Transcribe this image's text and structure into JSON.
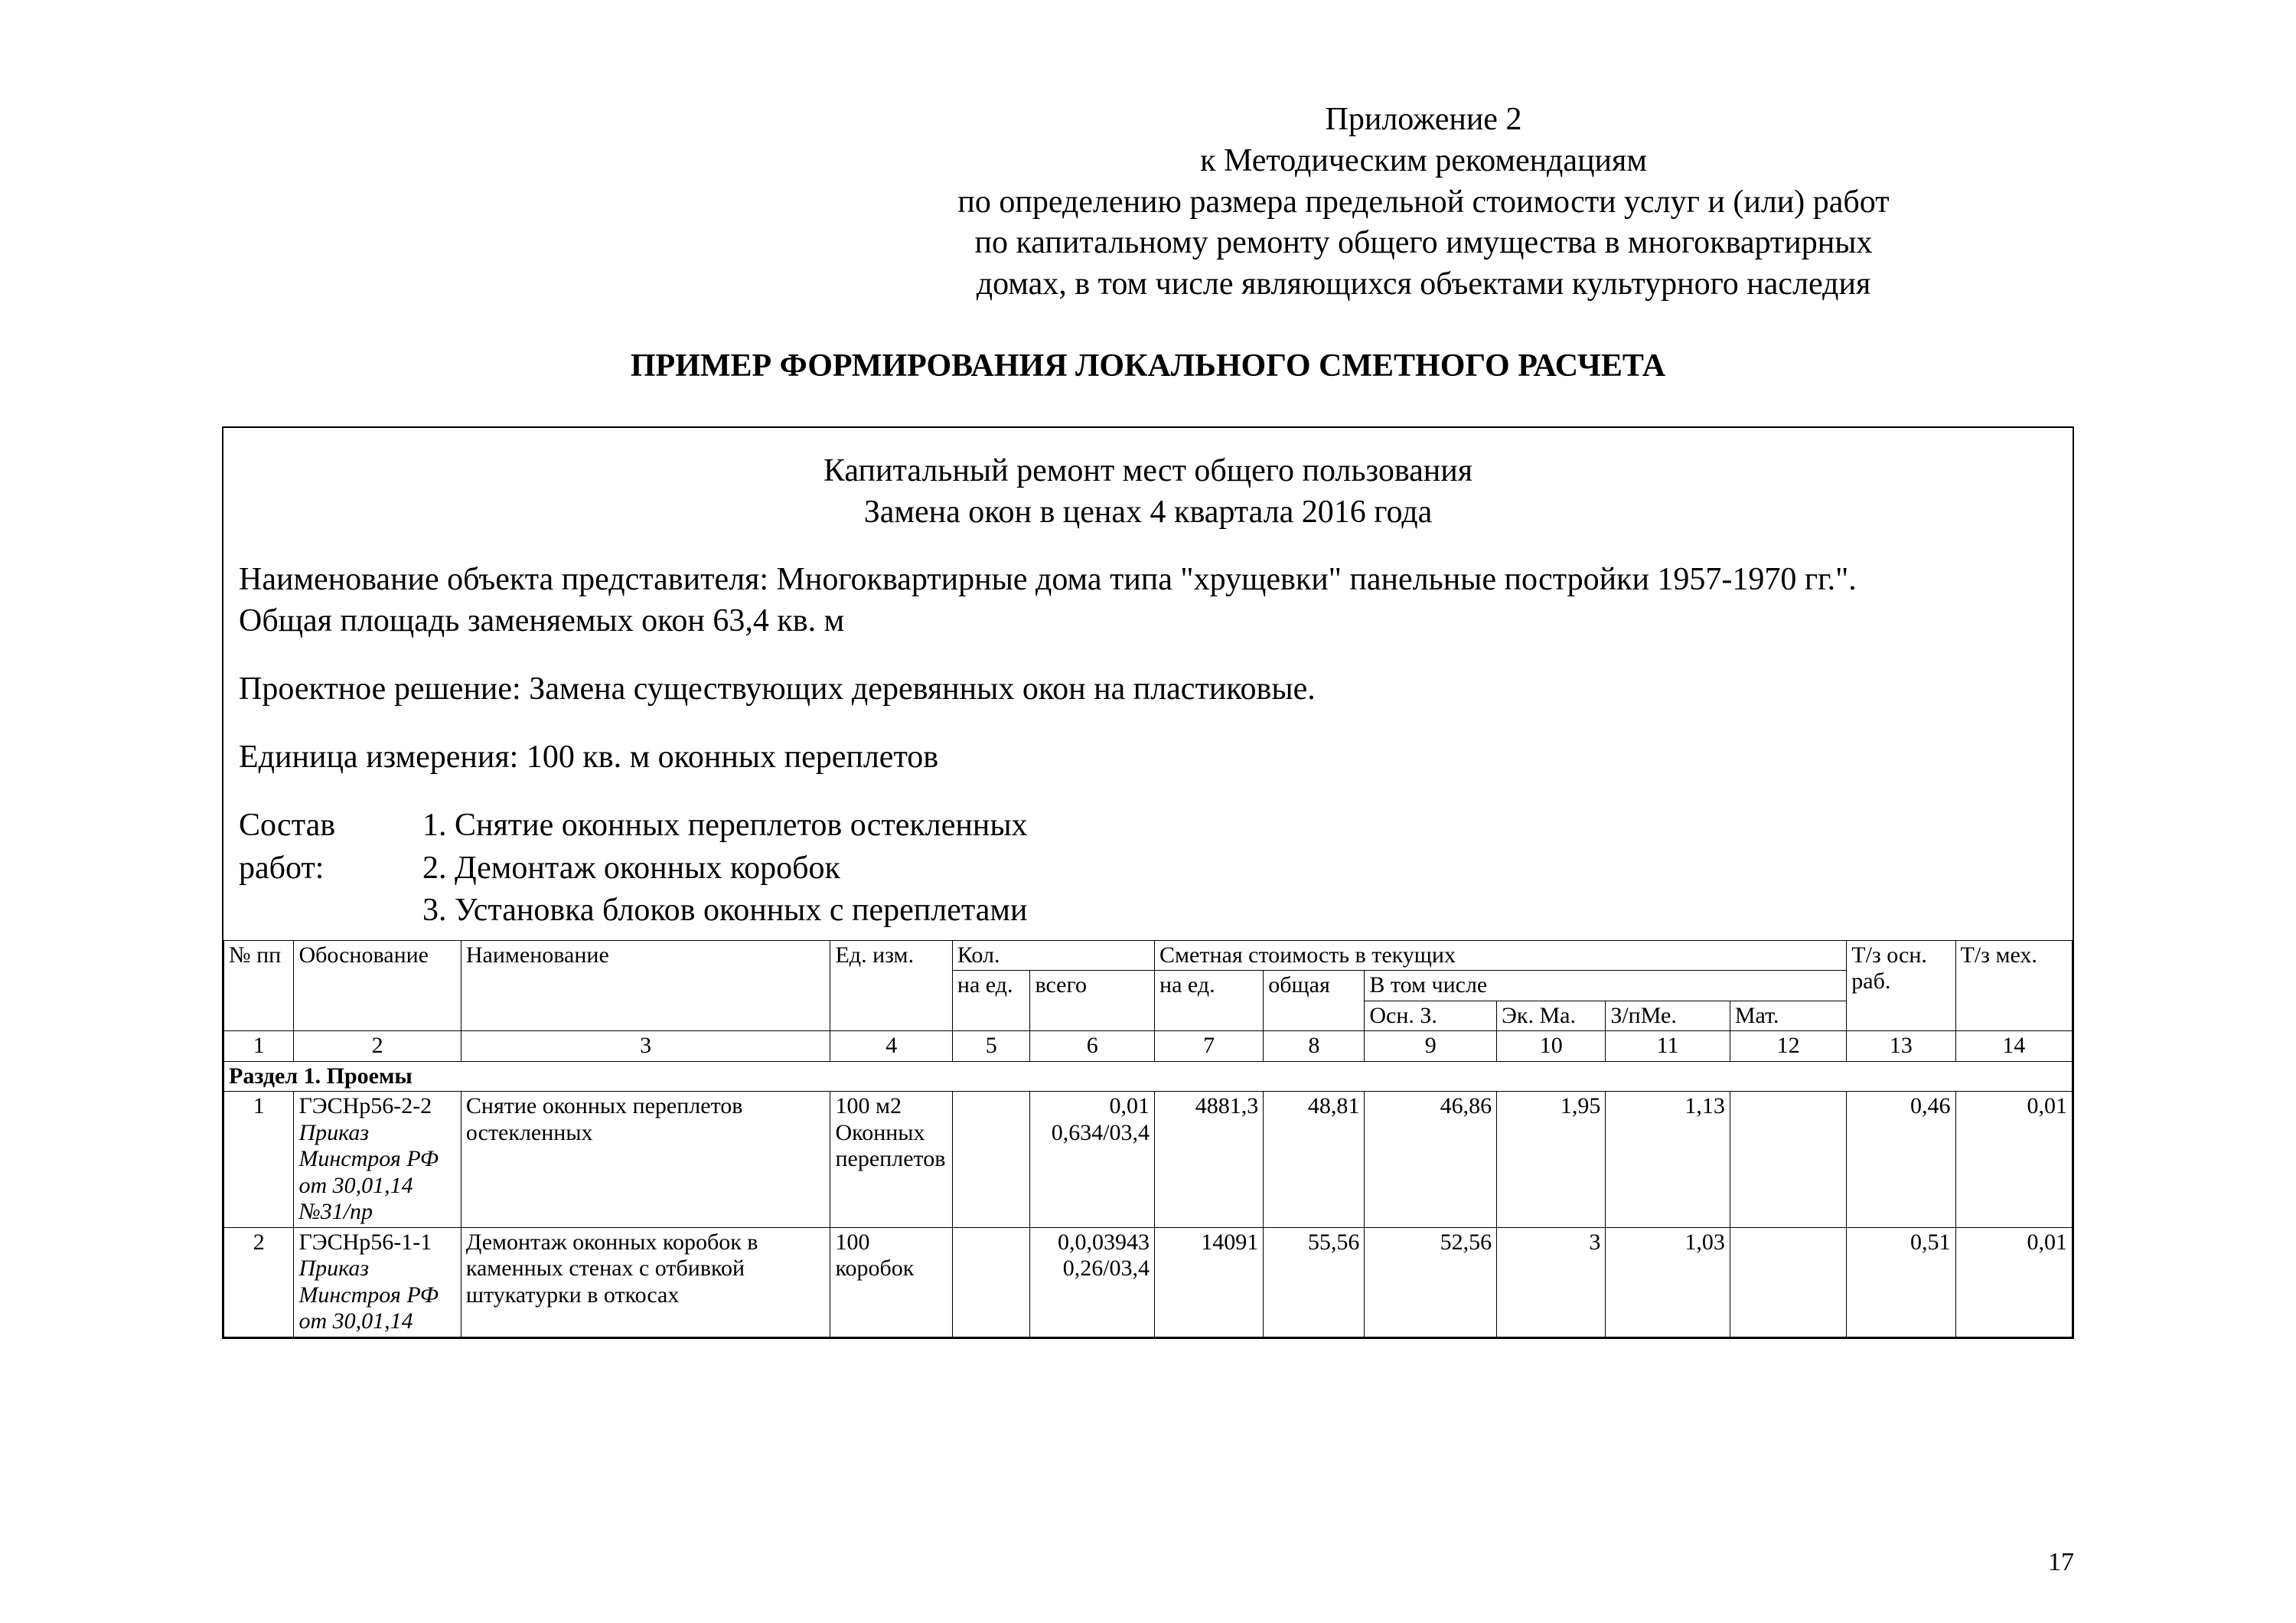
{
  "header": {
    "line1": "Приложение 2",
    "line2": "к Методическим рекомендациям",
    "line3": "по определению размера предельной стоимости услуг и (или) работ",
    "line4": "по капитальному ремонту общего имущества в многоквартирных",
    "line5": "домах, в том числе являющихся объектами культурного наследия"
  },
  "title": "ПРИМЕР ФОРМИРОВАНИЯ ЛОКАЛЬНОГО СМЕТНОГО РАСЧЕТА",
  "box": {
    "line1": "Капитальный ремонт мест общего пользования",
    "line2": "Замена окон в ценах 4 квартала 2016 года",
    "objname": "Наименование объекта представителя: Многоквартирные дома типа \"хрущевки\" панельные постройки 1957-1970 гг.\".",
    "area": "Общая площадь заменяемых окон 63,4 кв. м",
    "solution": "Проектное решение: Замена существующих деревянных окон на пластиковые.",
    "unit": "Единица измерения: 100 кв. м оконных переплетов",
    "sostav_label1": "Состав",
    "sostav_label2": "работ:",
    "sostav_1": "1. Снятие оконных переплетов остекленных",
    "sostav_2": "2. Демонтаж оконных коробок",
    "sostav_3": "3. Установка блоков оконных с переплетами"
  },
  "thead": {
    "npp": "№ пп",
    "obosn": "Обоснование",
    "naim": "Наименование",
    "ed": "Ед. изм.",
    "kol": "Кол.",
    "smet": "Сметная стоимость в текущих",
    "tz_osn": "Т/з осн. раб.",
    "tz_meh": "Т/з мех.",
    "na_ed": "на ед.",
    "vsego": "всего",
    "na_ed2": "на ед.",
    "obsh": "общая",
    "vtom": "В том числе",
    "osn3": "Осн. З.",
    "ekma": "Эк. Ма.",
    "zpme": "З/пМе.",
    "mat": "Мат."
  },
  "colnums": {
    "c1": "1",
    "c2": "2",
    "c3": "3",
    "c4": "4",
    "c5": "5",
    "c6": "6",
    "c7": "7",
    "c8": "8",
    "c9": "9",
    "c10": "10",
    "c11": "11",
    "c12": "12",
    "c13": "13",
    "c14": "14"
  },
  "section1": "Раздел 1. Проемы",
  "rows": [
    {
      "n": "1",
      "ob_code": "ГЭСНр56-2-2",
      "ob_src": "Приказ Минстроя РФ от 30,01,14 №31/пр",
      "name": "Снятие оконных переплетов остекленных",
      "ed": "100 м2 Оконных переплетов",
      "kol_ed": "",
      "kol_vs": "0,01 0,634/03,4",
      "sm_ed": "4881,3",
      "sm_ob": "48,81",
      "osn": "46,86",
      "ekm": "1,95",
      "zpm": "1,13",
      "mat": "",
      "tzo": "0,46",
      "tzm": "0,01"
    },
    {
      "n": "2",
      "ob_code": "ГЭСНр56-1-1",
      "ob_src": "Приказ Минстроя РФ от 30,01,14",
      "name": "Демонтаж оконных коробок в каменных стенах с отбивкой штукатурки в откосах",
      "ed": "100 коробок",
      "kol_ed": "",
      "kol_vs": "0,0,03943 0,26/03,4",
      "sm_ed": "14091",
      "sm_ob": "55,56",
      "osn": "52,56",
      "ekm": "3",
      "zpm": "1,03",
      "mat": "",
      "tzo": "0,51",
      "tzm": "0,01"
    }
  ],
  "pagenum": "17"
}
